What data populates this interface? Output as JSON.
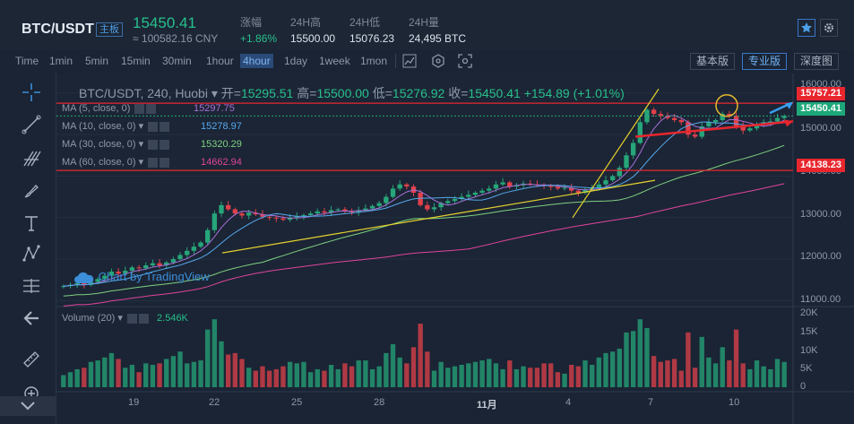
{
  "header": {
    "pair": "BTC/USDT",
    "main_tag": "主板",
    "price": "15450.41",
    "cny": "≈ 100582.16 CNY",
    "stats": [
      {
        "label": "涨幅",
        "value": "+1.86%",
        "up": true
      },
      {
        "label": "24H高",
        "value": "15500.00",
        "up": false
      },
      {
        "label": "24H低",
        "value": "15076.23",
        "up": false
      },
      {
        "label": "24H量",
        "value": "24,495 BTC",
        "up": false
      }
    ]
  },
  "toolbar": {
    "timeframes": [
      "Time",
      "1min",
      "5min",
      "15min",
      "30min",
      "1hour",
      "4hour",
      "1day",
      "1week",
      "1mon"
    ],
    "active_timeframe": "4hour",
    "view_buttons": [
      "基本版",
      "专业版",
      "深度图"
    ],
    "active_view": "专业版"
  },
  "legend": {
    "title": "BTC/USDT, 240, Huobi",
    "open_label": "开=",
    "open": "15295.51",
    "high_label": "高=",
    "high": "15500.00",
    "low_label": "低=",
    "low": "15276.92",
    "close_label": "收=",
    "close": "15450.41",
    "change": "+154.89 (+1.01%)",
    "ma": [
      {
        "label": "MA (5, close, 0)",
        "value": "15297.75",
        "color": "#a770d6"
      },
      {
        "label": "MA (10, close, 0)",
        "value": "15278.97",
        "color": "#56a8ec"
      },
      {
        "label": "MA (30, close, 0)",
        "value": "15320.29",
        "color": "#7fd17f"
      },
      {
        "label": "MA (60, close, 0)",
        "value": "14662.94",
        "color": "#e0449c"
      }
    ],
    "volume_label": "Volume (20)",
    "volume_value": "2.546K"
  },
  "watermark": "Chart by TradingView",
  "price_tags": [
    {
      "value": "15757.21",
      "color": "#e8262e"
    },
    {
      "value": "15450.41",
      "color": "#1ea87a"
    },
    {
      "value": "14138.23",
      "color": "#e8262e"
    }
  ],
  "y_axis": [
    "16000.00",
    "15000.00",
    "14000.00",
    "13000.00",
    "12000.00",
    "11000.00"
  ],
  "vol_axis": [
    "20K",
    "15K",
    "10K",
    "5K",
    "0"
  ],
  "x_axis": [
    "19",
    "22",
    "25",
    "28",
    "11月",
    "4",
    "7",
    "10"
  ],
  "colors": {
    "up": "#26a67a",
    "down": "#e2404a",
    "background": "#1a2434",
    "accent": "#3a77c8"
  },
  "chart_data": {
    "type": "candlestick",
    "symbol": "BTC/USDT",
    "interval": "240",
    "ylim": [
      10900,
      16300
    ],
    "volume_ylim": [
      0,
      20000
    ],
    "x_ticks": [
      "19",
      "22",
      "25",
      "28",
      "11月",
      "4",
      "7",
      "10"
    ],
    "candles_close": [
      11350,
      11380,
      11420,
      11380,
      11450,
      11520,
      11600,
      11700,
      11650,
      11720,
      11800,
      11780,
      11850,
      11900,
      11850,
      11920,
      12000,
      12100,
      12200,
      12300,
      12400,
      12700,
      13100,
      13300,
      13200,
      13100,
      13050,
      13120,
      13080,
      13020,
      13000,
      12980,
      12950,
      13000,
      13030,
      13060,
      13100,
      13150,
      13120,
      13180,
      13200,
      13150,
      13130,
      13180,
      13220,
      13280,
      13350,
      13500,
      13700,
      13800,
      13750,
      13600,
      13300,
      13200,
      13250,
      13350,
      13400,
      13450,
      13500,
      13550,
      13600,
      13650,
      13700,
      13800,
      13850,
      13750,
      13780,
      13820,
      13800,
      13790,
      13760,
      13740,
      13700,
      13720,
      13650,
      13600,
      13680,
      13720,
      13800,
      13900,
      14000,
      14200,
      14500,
      14800,
      15300,
      15600,
      15500,
      15450,
      15400,
      15350,
      15300,
      15000,
      14950,
      15200,
      15300,
      15350,
      15500,
      15450,
      15200,
      15100,
      15150,
      15250,
      15300,
      15320,
      15400,
      15450
    ]
  }
}
